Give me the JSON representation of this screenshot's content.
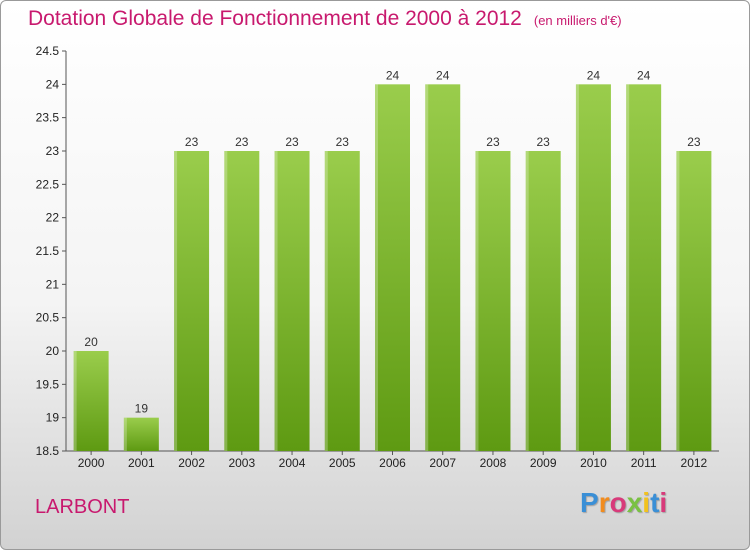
{
  "header": {
    "title": "Dotation Globale de Fonctionnement de 2000 à 2012",
    "subtitle": "(en milliers d'€)"
  },
  "footer": {
    "commune": "LARBONT",
    "logo_letters": [
      "P",
      "r",
      "o",
      "x",
      "i",
      "t",
      "i"
    ],
    "logo_colors": [
      "#3a8fd6",
      "#f28c1e",
      "#d83a7a",
      "#7ac143",
      "#f2c21e",
      "#3a8fd6",
      "#d83a7a"
    ]
  },
  "colors": {
    "bar_top": "#9acd4c",
    "bar_bottom": "#5e9a12",
    "title": "#c8196e"
  },
  "chart_data": {
    "type": "bar",
    "categories": [
      "2000",
      "2001",
      "2002",
      "2003",
      "2004",
      "2005",
      "2006",
      "2007",
      "2008",
      "2009",
      "2010",
      "2011",
      "2012"
    ],
    "values": [
      20,
      19,
      23,
      23,
      23,
      23,
      24,
      24,
      23,
      23,
      24,
      24,
      23
    ],
    "data_labels": [
      "20",
      "19",
      "23",
      "23",
      "23",
      "23",
      "24",
      "24",
      "23",
      "23",
      "24",
      "24",
      "23"
    ],
    "ylim": [
      18.5,
      24.5
    ],
    "yticks": [
      "18.5",
      "19",
      "19.5",
      "20",
      "20.5",
      "21",
      "21.5",
      "22",
      "22.5",
      "23",
      "23.5",
      "24",
      "24.5"
    ],
    "grid": false
  }
}
